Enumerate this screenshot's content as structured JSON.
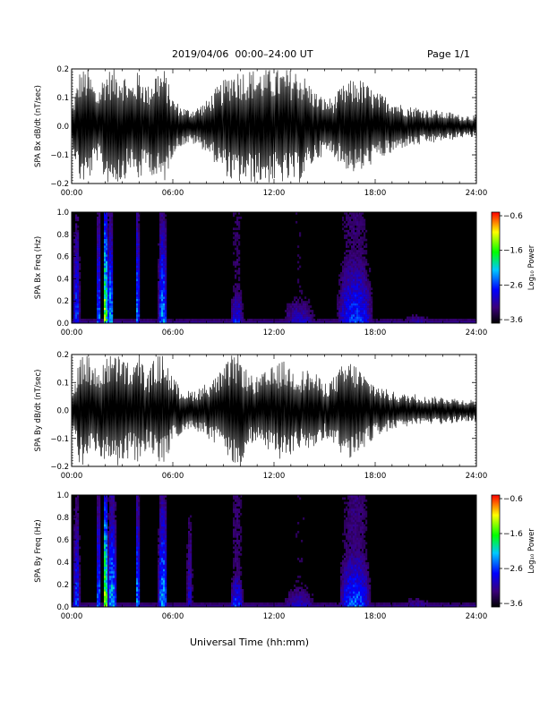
{
  "header": {
    "title": "2019/04/06  00:00–24:00 UT",
    "page": "Page 1/1"
  },
  "footer": {
    "xlabel": "Universal Time (hh:mm)"
  },
  "colors": {
    "waveform": "#000000",
    "spectrogram_background": "#000000",
    "colorbar": [
      "#000000",
      "#3a007a",
      "#0000ff",
      "#00c8ff",
      "#00ff00",
      "#ffff00",
      "#ff0000"
    ]
  },
  "chart_data": [
    {
      "type": "line",
      "panel": "bx-waveform",
      "ylabel": "SPA Bx dB/dt (nT/sec)",
      "xlim_hours": [
        0,
        24
      ],
      "ylim": [
        -0.2,
        0.2
      ],
      "xticks": [
        "00:00",
        "06:00",
        "12:00",
        "18:00",
        "24:00"
      ],
      "yticks": [
        "−0.2",
        "−0.1",
        "0.0",
        "0.1",
        "0.2"
      ],
      "ytick_values": [
        -0.2,
        -0.1,
        0.0,
        0.1,
        0.2
      ],
      "amplitude_envelope": {
        "hours": [
          0,
          0.5,
          1,
          1.5,
          2,
          2.5,
          3,
          3.5,
          4,
          4.5,
          5,
          5.5,
          6,
          6.5,
          7,
          7.5,
          8,
          8.5,
          9,
          9.5,
          10,
          10.5,
          11,
          11.5,
          12,
          12.5,
          13,
          13.5,
          14,
          14.5,
          15,
          15.5,
          16,
          16.5,
          17,
          17.5,
          18,
          18.5,
          19,
          19.5,
          20,
          20.5,
          21,
          21.5,
          22,
          22.5,
          23,
          23.5,
          24
        ],
        "peak": [
          0.06,
          0.2,
          0.2,
          0.12,
          0.2,
          0.2,
          0.2,
          0.15,
          0.2,
          0.14,
          0.2,
          0.2,
          0.1,
          0.07,
          0.06,
          0.07,
          0.09,
          0.13,
          0.16,
          0.2,
          0.2,
          0.2,
          0.2,
          0.2,
          0.2,
          0.2,
          0.2,
          0.2,
          0.16,
          0.12,
          0.1,
          0.1,
          0.14,
          0.16,
          0.17,
          0.15,
          0.12,
          0.11,
          0.1,
          0.08,
          0.07,
          0.07,
          0.06,
          0.06,
          0.05,
          0.05,
          0.04,
          0.04,
          0.04
        ]
      }
    },
    {
      "type": "heatmap",
      "panel": "bx-spectrogram",
      "ylabel": "SPA Bx Freq (Hz)",
      "colorbar_label": "Log₁₀ Power",
      "colorbar_ticks": [
        "−0.6",
        "−1.6",
        "−2.6",
        "−3.6"
      ],
      "colorbar_range": [
        -3.6,
        -0.6
      ],
      "xlim_hours": [
        0,
        24
      ],
      "ylim": [
        0.0,
        1.0
      ],
      "xticks": [
        "00:00",
        "06:00",
        "12:00",
        "18:00",
        "24:00"
      ],
      "yticks": [
        "0.0",
        "0.2",
        "0.4",
        "0.6",
        "0.8",
        "1.0"
      ],
      "ytick_values": [
        0.0,
        0.2,
        0.4,
        0.6,
        0.8,
        1.0
      ],
      "bursts": [
        {
          "hour": 0.3,
          "width": 0.3,
          "top_hz": 0.9,
          "peak": 0.45
        },
        {
          "hour": 1.6,
          "width": 0.2,
          "top_hz": 1.0,
          "peak": 0.5
        },
        {
          "hour": 2.0,
          "width": 0.2,
          "top_hz": 1.0,
          "peak": 0.95
        },
        {
          "hour": 2.3,
          "width": 0.3,
          "top_hz": 0.8,
          "peak": 0.6
        },
        {
          "hour": 3.9,
          "width": 0.2,
          "top_hz": 1.0,
          "peak": 0.55
        },
        {
          "hour": 5.4,
          "width": 0.4,
          "top_hz": 0.95,
          "peak": 0.55
        },
        {
          "hour": 9.8,
          "width": 0.6,
          "top_hz": 0.3,
          "peak": 0.4
        },
        {
          "hour": 13.5,
          "width": 1.5,
          "top_hz": 0.25,
          "peak": 0.3
        },
        {
          "hour": 16.8,
          "width": 1.6,
          "top_hz": 0.6,
          "peak": 0.45
        },
        {
          "hour": 20.5,
          "width": 1.5,
          "top_hz": 0.1,
          "peak": 0.25
        }
      ]
    },
    {
      "type": "line",
      "panel": "by-waveform",
      "ylabel": "SPA By dB/dt (nT/sec)",
      "xlim_hours": [
        0,
        24
      ],
      "ylim": [
        -0.2,
        0.2
      ],
      "xticks": [
        "00:00",
        "06:00",
        "12:00",
        "18:00",
        "24:00"
      ],
      "yticks": [
        "−0.2",
        "−0.1",
        "0.0",
        "0.1",
        "0.2"
      ],
      "ytick_values": [
        -0.2,
        -0.1,
        0.0,
        0.1,
        0.2
      ],
      "amplitude_envelope": {
        "hours": [
          0,
          0.5,
          1,
          1.5,
          2,
          2.5,
          3,
          3.5,
          4,
          4.5,
          5,
          5.5,
          6,
          6.5,
          7,
          7.5,
          8,
          8.5,
          9,
          9.5,
          10,
          10.5,
          11,
          11.5,
          12,
          12.5,
          13,
          13.5,
          14,
          14.5,
          15,
          15.5,
          16,
          16.5,
          17,
          17.5,
          18,
          18.5,
          19,
          19.5,
          20,
          20.5,
          21,
          21.5,
          22,
          22.5,
          23,
          23.5,
          24
        ],
        "peak": [
          0.06,
          0.2,
          0.2,
          0.14,
          0.2,
          0.2,
          0.2,
          0.16,
          0.2,
          0.13,
          0.2,
          0.2,
          0.12,
          0.08,
          0.07,
          0.08,
          0.1,
          0.12,
          0.15,
          0.2,
          0.2,
          0.13,
          0.12,
          0.14,
          0.16,
          0.18,
          0.16,
          0.14,
          0.15,
          0.13,
          0.1,
          0.12,
          0.16,
          0.18,
          0.16,
          0.12,
          0.1,
          0.08,
          0.07,
          0.06,
          0.06,
          0.06,
          0.05,
          0.05,
          0.05,
          0.05,
          0.04,
          0.04,
          0.04
        ]
      }
    },
    {
      "type": "heatmap",
      "panel": "by-spectrogram",
      "ylabel": "SPA By Freq (Hz)",
      "colorbar_label": "Log₁₀ Power",
      "colorbar_ticks": [
        "−0.6",
        "−1.6",
        "−2.6",
        "−3.6"
      ],
      "colorbar_range": [
        -3.6,
        -0.6
      ],
      "xlim_hours": [
        0,
        24
      ],
      "ylim": [
        0.0,
        1.0
      ],
      "xticks": [
        "00:00",
        "06:00",
        "12:00",
        "18:00",
        "24:00"
      ],
      "yticks": [
        "0.0",
        "0.2",
        "0.4",
        "0.6",
        "0.8",
        "1.0"
      ],
      "ytick_values": [
        0.0,
        0.2,
        0.4,
        0.6,
        0.8,
        1.0
      ],
      "bursts": [
        {
          "hour": 0.3,
          "width": 0.3,
          "top_hz": 0.9,
          "peak": 0.45
        },
        {
          "hour": 1.6,
          "width": 0.2,
          "top_hz": 1.0,
          "peak": 0.5
        },
        {
          "hour": 2.0,
          "width": 0.2,
          "top_hz": 1.0,
          "peak": 0.95
        },
        {
          "hour": 2.4,
          "width": 0.4,
          "top_hz": 0.8,
          "peak": 0.65
        },
        {
          "hour": 3.9,
          "width": 0.2,
          "top_hz": 1.0,
          "peak": 0.55
        },
        {
          "hour": 5.4,
          "width": 0.4,
          "top_hz": 0.95,
          "peak": 0.6
        },
        {
          "hour": 7.0,
          "width": 0.3,
          "top_hz": 0.9,
          "peak": 0.3
        },
        {
          "hour": 9.8,
          "width": 0.6,
          "top_hz": 0.3,
          "peak": 0.45
        },
        {
          "hour": 13.5,
          "width": 1.5,
          "top_hz": 0.2,
          "peak": 0.3
        },
        {
          "hour": 16.8,
          "width": 1.4,
          "top_hz": 0.5,
          "peak": 0.5
        },
        {
          "hour": 20.5,
          "width": 1.5,
          "top_hz": 0.1,
          "peak": 0.25
        }
      ]
    }
  ]
}
